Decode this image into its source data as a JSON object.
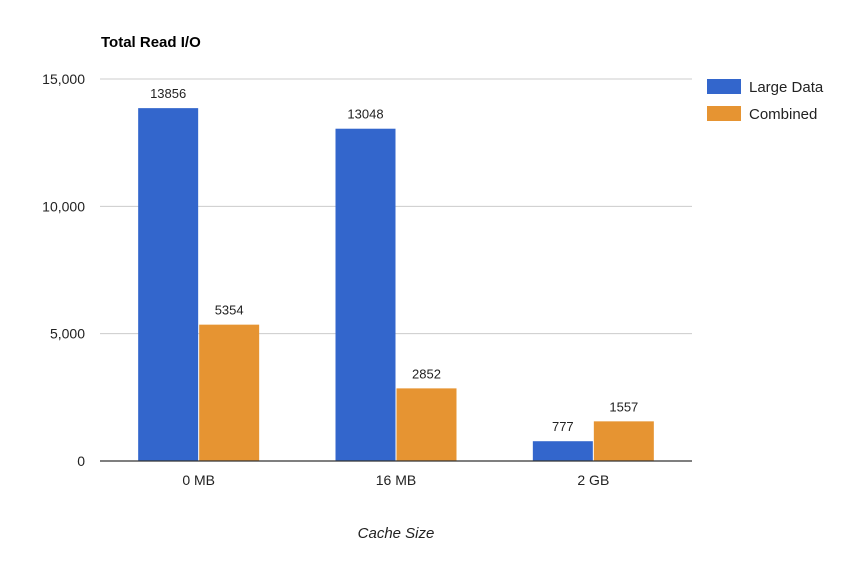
{
  "chart_data": {
    "type": "bar",
    "title": "Total Read I/O",
    "xlabel": "Cache Size",
    "ylabel": "",
    "categories": [
      "0 MB",
      "16 MB",
      "2 GB"
    ],
    "series": [
      {
        "name": "Large Data",
        "values": [
          13856,
          13048,
          777
        ],
        "color": "#3366cc"
      },
      {
        "name": "Combined",
        "values": [
          5354,
          2852,
          1557
        ],
        "color": "#e69432"
      }
    ],
    "ylim": [
      0,
      15000
    ],
    "yticks": [
      0,
      5000,
      10000,
      15000
    ],
    "ytick_labels": [
      "0",
      "5,000",
      "10,000",
      "15,000"
    ],
    "grid": true,
    "legend_position": "right"
  }
}
